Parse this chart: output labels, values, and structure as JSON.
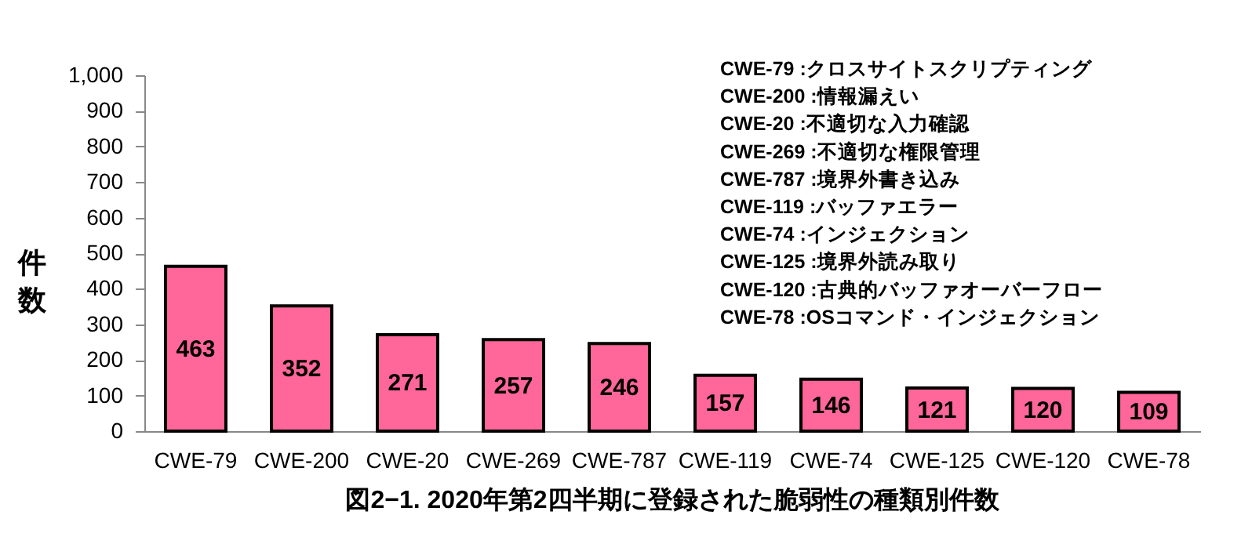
{
  "chart_data": {
    "type": "bar",
    "title": "図2−1. 2020年第2四半期に登録された脆弱性の種類別件数",
    "ylabel": "件数",
    "categories": [
      "CWE-79",
      "CWE-200",
      "CWE-20",
      "CWE-269",
      "CWE-787",
      "CWE-119",
      "CWE-74",
      "CWE-125",
      "CWE-120",
      "CWE-78"
    ],
    "values": [
      463,
      352,
      271,
      257,
      246,
      157,
      146,
      121,
      120,
      109
    ],
    "color": "#ff6699",
    "ylim": [
      0,
      1000
    ],
    "yticks": [
      0,
      100,
      200,
      300,
      400,
      500,
      600,
      700,
      800,
      900,
      {
        "value": 1000,
        "label": "1,000"
      }
    ],
    "grid": false,
    "data_labels": true,
    "annotations": [
      "CWE-79 :クロスサイトスクリプティング",
      "CWE-200 :情報漏えい",
      "CWE-20 :不適切な入力確認",
      "CWE-269 :不適切な権限管理",
      "CWE-787 :境界外書き込み",
      "CWE-119 :バッファエラー",
      "CWE-74 :インジェクション",
      "CWE-125 :境界外読み取り",
      "CWE-120 :古典的バッファオーバーフロー",
      "CWE-78 :OSコマンド・インジェクション"
    ]
  }
}
